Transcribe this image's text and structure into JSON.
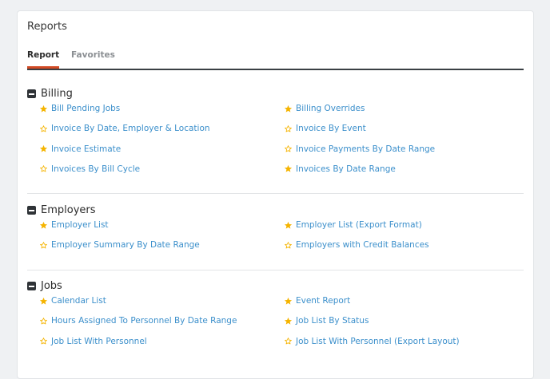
{
  "title": "Reports",
  "tabs": [
    {
      "label": "Report",
      "active": true
    },
    {
      "label": "Favorites",
      "active": false
    }
  ],
  "colors": {
    "link": "#3b8fcb",
    "star": "#f5b400",
    "tab_accent": "#d24a24"
  },
  "sections": [
    {
      "name": "Billing",
      "items": [
        {
          "label": "Bill Pending Jobs",
          "favorite": true
        },
        {
          "label": "Billing Overrides",
          "favorite": true
        },
        {
          "label": "Invoice By Date, Employer & Location",
          "favorite": false
        },
        {
          "label": "Invoice By Event",
          "favorite": false
        },
        {
          "label": "Invoice Estimate",
          "favorite": true
        },
        {
          "label": "Invoice Payments By Date Range",
          "favorite": false
        },
        {
          "label": "Invoices By Bill Cycle",
          "favorite": false
        },
        {
          "label": "Invoices By Date Range",
          "favorite": true
        }
      ]
    },
    {
      "name": "Employers",
      "items": [
        {
          "label": "Employer List",
          "favorite": true
        },
        {
          "label": "Employer List (Export Format)",
          "favorite": true
        },
        {
          "label": "Employer Summary By Date Range",
          "favorite": false
        },
        {
          "label": "Employers with Credit Balances",
          "favorite": false
        }
      ]
    },
    {
      "name": "Jobs",
      "items": [
        {
          "label": "Calendar List",
          "favorite": true
        },
        {
          "label": "Event Report",
          "favorite": true
        },
        {
          "label": "Hours Assigned To Personnel By Date Range",
          "favorite": false
        },
        {
          "label": "Job List By Status",
          "favorite": true
        },
        {
          "label": "Job List With Personnel",
          "favorite": false
        },
        {
          "label": "Job List With Personnel (Export Layout)",
          "favorite": false
        }
      ]
    }
  ]
}
